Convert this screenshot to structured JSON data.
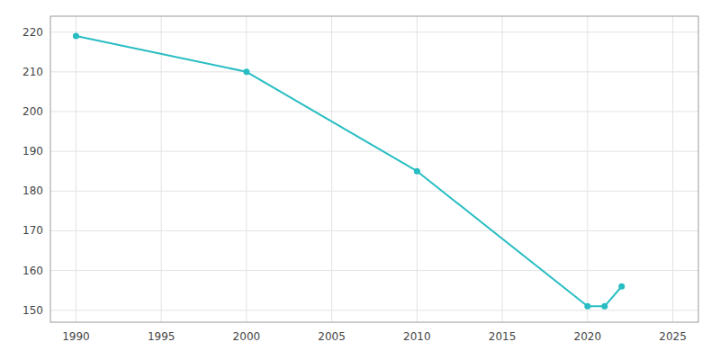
{
  "chart_data": {
    "type": "line",
    "x": [
      1990,
      2000,
      2010,
      2020,
      2021,
      2022
    ],
    "values": [
      219,
      210,
      185,
      151,
      151,
      156
    ],
    "color": "#27bdc2",
    "marker": "circle",
    "xlim": [
      1988.5,
      2026.5
    ],
    "ylim": [
      147,
      224
    ],
    "xticks": [
      1990,
      1995,
      2000,
      2005,
      2010,
      2015,
      2020,
      2025
    ],
    "yticks": [
      150,
      160,
      170,
      180,
      190,
      200,
      210,
      220
    ],
    "grid": true
  }
}
